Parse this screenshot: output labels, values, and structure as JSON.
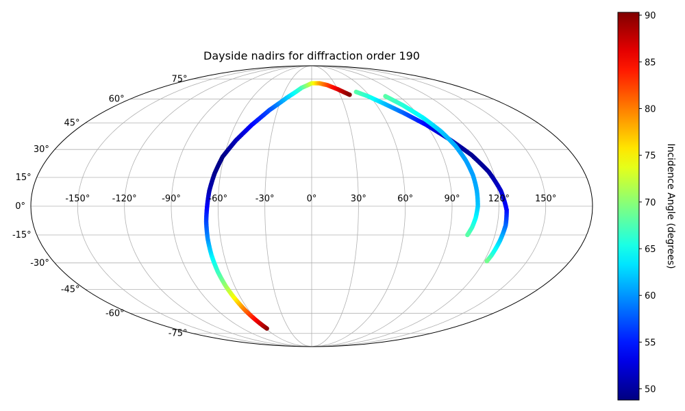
{
  "chart_data": {
    "type": "scatter",
    "projection": "mollweide",
    "title": "Dayside nadirs for diffraction order 190",
    "xlabel": "",
    "ylabel": "",
    "xlim": [
      -180,
      180
    ],
    "ylim": [
      -90,
      90
    ],
    "x_ticks": [
      -150,
      -120,
      -90,
      -60,
      -30,
      0,
      30,
      60,
      90,
      120,
      150
    ],
    "x_tick_labels": [
      "-150°",
      "-120°",
      "-90°",
      "-60°",
      "-30°",
      "0°",
      "30°",
      "60°",
      "90°",
      "120°",
      "150°"
    ],
    "y_ticks": [
      -75,
      -60,
      -45,
      -30,
      -15,
      0,
      15,
      30,
      45,
      60,
      75
    ],
    "y_tick_labels": [
      "-75°",
      "-60°",
      "-45°",
      "-30°",
      "-15°",
      "0°",
      "15°",
      "30°",
      "45°",
      "60°",
      "75°"
    ],
    "grid": true,
    "colorbar": {
      "label": "Incidence Angle (degrees)",
      "colormap": "jet",
      "vmin": 48.8,
      "vmax": 90.3,
      "ticks": [
        50,
        55,
        60,
        65,
        70,
        75,
        80,
        85,
        90
      ],
      "tick_labels": [
        "50",
        "55",
        "60",
        "65",
        "70",
        "75",
        "80",
        "85",
        "90"
      ]
    },
    "series": [
      {
        "description_none": "",
        "points": [
          {
            "lon": -58.5,
            "lat": -71,
            "value": 90
          },
          {
            "lon": -61,
            "lat": -65,
            "value": 86
          },
          {
            "lon": -63.5,
            "lat": -58,
            "value": 81
          },
          {
            "lon": -65.5,
            "lat": -50,
            "value": 75
          },
          {
            "lon": -67,
            "lat": -43,
            "value": 71
          },
          {
            "lon": -68,
            "lat": -35,
            "value": 67
          },
          {
            "lon": -68.5,
            "lat": -26,
            "value": 64
          },
          {
            "lon": -68.5,
            "lat": -17,
            "value": 60
          },
          {
            "lon": -68,
            "lat": -8,
            "value": 57
          },
          {
            "lon": -67,
            "lat": 0,
            "value": 54
          },
          {
            "lon": -66,
            "lat": 8,
            "value": 51
          },
          {
            "lon": -64,
            "lat": 17,
            "value": 49.5
          },
          {
            "lon": -61,
            "lat": 26,
            "value": 49
          },
          {
            "lon": -55,
            "lat": 35,
            "value": 51
          },
          {
            "lon": -47,
            "lat": 44,
            "value": 54
          },
          {
            "lon": -37,
            "lat": 53,
            "value": 57
          },
          {
            "lon": -25,
            "lat": 61,
            "value": 62
          },
          {
            "lon": -12,
            "lat": 68,
            "value": 67
          },
          {
            "lon": 0,
            "lat": 71.5,
            "value": 73
          },
          {
            "lon": 10,
            "lat": 71.5,
            "value": 78
          },
          {
            "lon": 20,
            "lat": 70,
            "value": 82
          },
          {
            "lon": 30,
            "lat": 67,
            "value": 86
          },
          {
            "lon": 40,
            "lat": 63,
            "value": 90
          }
        ]
      },
      {
        "points": [
          {
            "lon": 49,
            "lat": 65,
            "value": 68
          },
          {
            "lon": 58,
            "lat": 62,
            "value": 66
          },
          {
            "lon": 68,
            "lat": 57,
            "value": 62
          },
          {
            "lon": 79,
            "lat": 51,
            "value": 58
          },
          {
            "lon": 90,
            "lat": 44,
            "value": 54
          },
          {
            "lon": 100,
            "lat": 36,
            "value": 51
          },
          {
            "lon": 110,
            "lat": 27,
            "value": 49.5
          },
          {
            "lon": 117,
            "lat": 18,
            "value": 50
          },
          {
            "lon": 122,
            "lat": 8,
            "value": 52
          },
          {
            "lon": 125,
            "lat": -2,
            "value": 54
          },
          {
            "lon": 125.5,
            "lat": -10,
            "value": 58
          },
          {
            "lon": 124.5,
            "lat": -18,
            "value": 62
          },
          {
            "lon": 123,
            "lat": -26,
            "value": 66
          },
          {
            "lon": 122,
            "lat": -29,
            "value": 69
          }
        ]
      },
      {
        "points": [
          {
            "lon": 76,
            "lat": 62,
            "value": 68
          },
          {
            "lon": 84,
            "lat": 56,
            "value": 66
          },
          {
            "lon": 92,
            "lat": 48,
            "value": 64
          },
          {
            "lon": 98,
            "lat": 40,
            "value": 62
          },
          {
            "lon": 102,
            "lat": 32,
            "value": 61
          },
          {
            "lon": 104.5,
            "lat": 24,
            "value": 60.5
          },
          {
            "lon": 106,
            "lat": 16,
            "value": 60.5
          },
          {
            "lon": 106.5,
            "lat": 8,
            "value": 61
          },
          {
            "lon": 106.5,
            "lat": 0,
            "value": 62
          },
          {
            "lon": 105.5,
            "lat": -6,
            "value": 64
          },
          {
            "lon": 104,
            "lat": -11,
            "value": 66
          },
          {
            "lon": 102,
            "lat": -15,
            "value": 68
          }
        ]
      }
    ]
  }
}
